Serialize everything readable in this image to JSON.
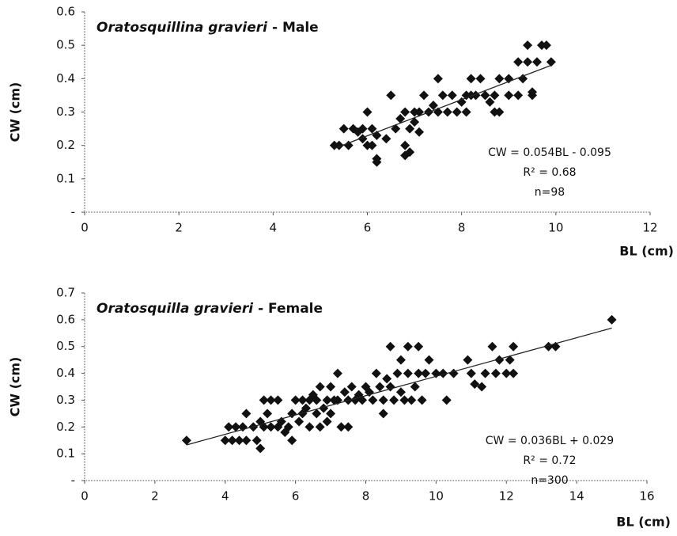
{
  "chart_data": [
    {
      "type": "scatter",
      "title_species": "Oratosquillina gravieri",
      "title_suffix": "- Male",
      "equation": "CW = 0.054BL - 0.095",
      "r_squared": "R² = 0.68",
      "n_label": "n=98",
      "x_label": "BL (cm)",
      "y_label": "CW (cm)",
      "color": "#111111",
      "xlim": [
        0,
        12
      ],
      "xticks": [
        0,
        2,
        4,
        6,
        8,
        10,
        12
      ],
      "ylim": [
        0,
        0.6
      ],
      "yticks": [
        {
          "value": 0,
          "label": "-"
        },
        0.1,
        0.2,
        0.3,
        0.4,
        0.5,
        0.6
      ],
      "x": [
        5.3,
        5.4,
        5.5,
        5.6,
        5.7,
        5.8,
        5.9,
        5.9,
        6.0,
        6.0,
        6.1,
        6.1,
        6.2,
        6.2,
        6.2,
        6.4,
        6.5,
        6.6,
        6.7,
        6.8,
        6.8,
        6.8,
        6.9,
        6.9,
        7.0,
        7.0,
        7.1,
        7.1,
        7.2,
        7.3,
        7.4,
        7.5,
        7.5,
        7.6,
        7.7,
        7.8,
        7.9,
        8.0,
        8.1,
        8.1,
        8.2,
        8.2,
        8.3,
        8.4,
        8.5,
        8.6,
        8.7,
        8.7,
        8.8,
        8.8,
        9.0,
        9.0,
        9.2,
        9.2,
        9.3,
        9.4,
        9.4,
        9.5,
        9.5,
        9.6,
        9.7,
        9.8,
        9.9
      ],
      "values": [
        0.2,
        0.2,
        0.25,
        0.2,
        0.25,
        0.24,
        0.25,
        0.22,
        0.3,
        0.2,
        0.2,
        0.25,
        0.23,
        0.16,
        0.15,
        0.22,
        0.35,
        0.25,
        0.28,
        0.3,
        0.2,
        0.17,
        0.18,
        0.25,
        0.27,
        0.3,
        0.24,
        0.3,
        0.35,
        0.3,
        0.32,
        0.4,
        0.3,
        0.35,
        0.3,
        0.35,
        0.3,
        0.33,
        0.35,
        0.3,
        0.4,
        0.35,
        0.35,
        0.4,
        0.35,
        0.33,
        0.3,
        0.35,
        0.4,
        0.3,
        0.35,
        0.4,
        0.45,
        0.35,
        0.4,
        0.45,
        0.5,
        0.35,
        0.36,
        0.45,
        0.5,
        0.5,
        0.45
      ],
      "trendline": {
        "x": [
          5.3,
          9.9
        ],
        "values": [
          0.191,
          0.44
        ]
      }
    },
    {
      "type": "scatter",
      "title_species": "Oratosquilla gravieri",
      "title_suffix": "- Female",
      "equation": "CW = 0.036BL + 0.029",
      "r_squared": "R² = 0.72",
      "n_label": "n=300",
      "x_label": "BL (cm)",
      "y_label": "CW (cm)",
      "color": "#111111",
      "xlim": [
        0,
        16
      ],
      "xticks": [
        0,
        2,
        4,
        6,
        8,
        10,
        12,
        14,
        16
      ],
      "ylim": [
        0,
        0.7
      ],
      "yticks": [
        {
          "value": 0,
          "label": "-"
        },
        0.1,
        0.2,
        0.3,
        0.4,
        0.5,
        0.6,
        0.7
      ],
      "x": [
        2.9,
        4.0,
        4.1,
        4.2,
        4.3,
        4.4,
        4.5,
        4.6,
        4.6,
        4.8,
        4.9,
        5.0,
        5.0,
        5.1,
        5.1,
        5.2,
        5.3,
        5.3,
        5.5,
        5.5,
        5.6,
        5.7,
        5.8,
        5.9,
        5.9,
        6.0,
        6.1,
        6.2,
        6.2,
        6.3,
        6.4,
        6.4,
        6.5,
        6.6,
        6.6,
        6.7,
        6.7,
        6.8,
        6.9,
        6.9,
        7.0,
        7.0,
        7.1,
        7.2,
        7.2,
        7.3,
        7.4,
        7.5,
        7.5,
        7.6,
        7.7,
        7.8,
        7.9,
        8.0,
        8.1,
        8.2,
        8.3,
        8.4,
        8.5,
        8.5,
        8.6,
        8.7,
        8.7,
        8.8,
        8.9,
        9.0,
        9.0,
        9.1,
        9.2,
        9.2,
        9.3,
        9.4,
        9.5,
        9.5,
        9.6,
        9.7,
        9.8,
        10.0,
        10.2,
        10.3,
        10.5,
        10.9,
        11.0,
        11.1,
        11.3,
        11.4,
        11.6,
        11.7,
        11.8,
        12.0,
        12.1,
        12.2,
        12.2,
        13.2,
        13.4,
        15.0
      ],
      "values": [
        0.15,
        0.15,
        0.2,
        0.15,
        0.2,
        0.15,
        0.2,
        0.25,
        0.15,
        0.2,
        0.15,
        0.12,
        0.22,
        0.3,
        0.2,
        0.25,
        0.2,
        0.3,
        0.2,
        0.3,
        0.22,
        0.18,
        0.2,
        0.15,
        0.25,
        0.3,
        0.22,
        0.25,
        0.3,
        0.27,
        0.3,
        0.2,
        0.32,
        0.25,
        0.3,
        0.35,
        0.2,
        0.27,
        0.3,
        0.22,
        0.35,
        0.25,
        0.3,
        0.4,
        0.3,
        0.2,
        0.33,
        0.2,
        0.3,
        0.35,
        0.3,
        0.32,
        0.3,
        0.35,
        0.33,
        0.3,
        0.4,
        0.35,
        0.25,
        0.3,
        0.38,
        0.5,
        0.35,
        0.3,
        0.4,
        0.33,
        0.45,
        0.3,
        0.5,
        0.4,
        0.3,
        0.35,
        0.5,
        0.4,
        0.3,
        0.4,
        0.45,
        0.4,
        0.4,
        0.3,
        0.4,
        0.45,
        0.4,
        0.36,
        0.35,
        0.4,
        0.5,
        0.4,
        0.45,
        0.4,
        0.45,
        0.5,
        0.4,
        0.5,
        0.5,
        0.6
      ],
      "trendline": {
        "x": [
          2.9,
          15.0
        ],
        "values": [
          0.133,
          0.569
        ]
      }
    }
  ]
}
